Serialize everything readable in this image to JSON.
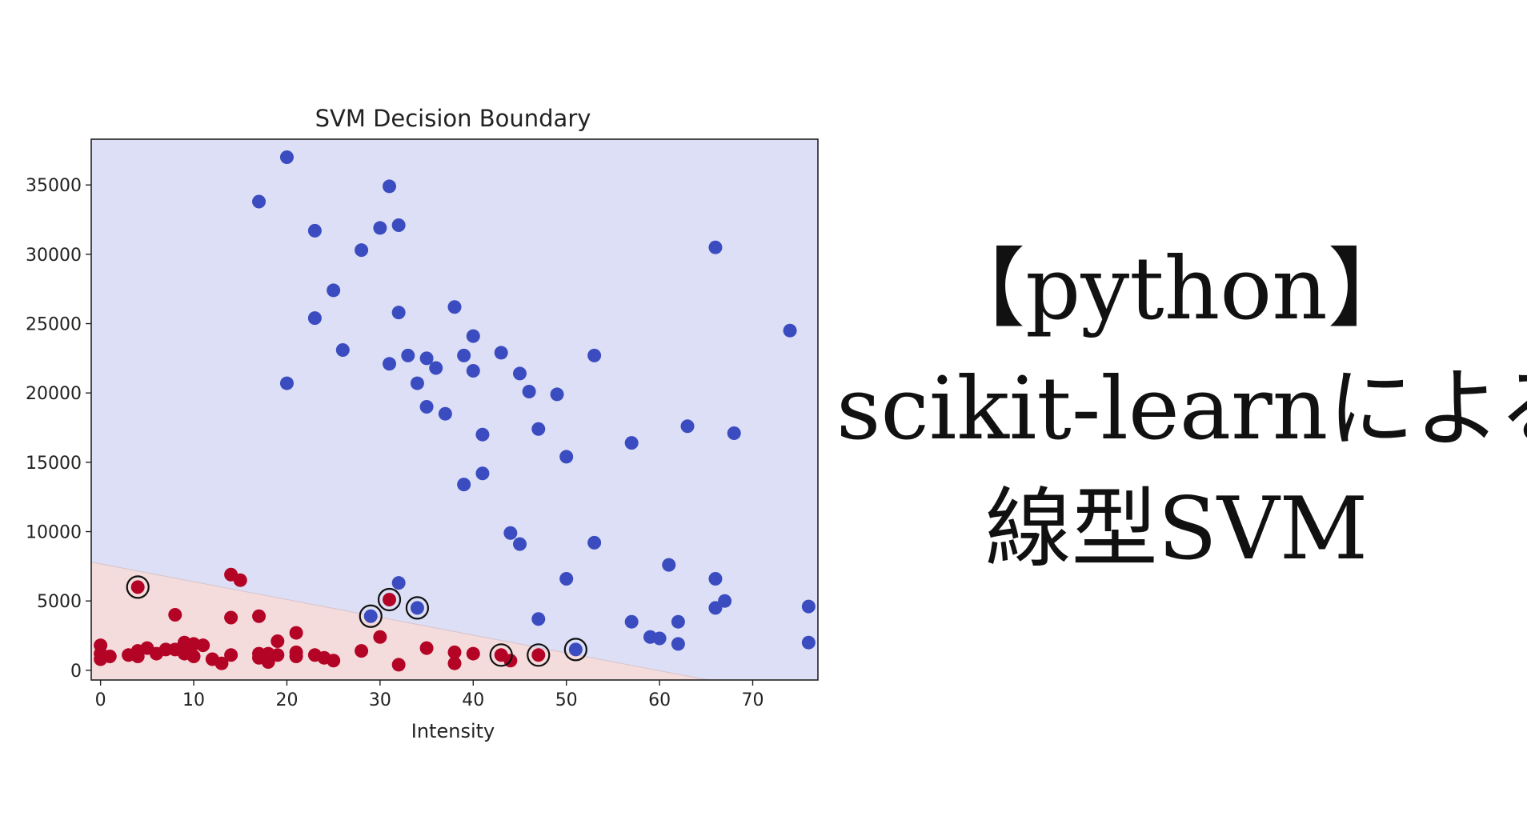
{
  "chart_data": {
    "type": "scatter",
    "title": "SVM Decision Boundary",
    "xlabel": "Intensity",
    "ylabel": "",
    "xlim": [
      -1,
      77
    ],
    "ylim": [
      -700,
      38300
    ],
    "xticks": [
      0,
      10,
      20,
      30,
      40,
      50,
      60,
      70
    ],
    "yticks": [
      0,
      5000,
      10000,
      15000,
      20000,
      25000,
      30000,
      35000
    ],
    "grid": false,
    "decision_boundary": {
      "points": [
        [
          -1,
          7800
        ],
        [
          65.2,
          -700
        ]
      ],
      "region_above_color": "#dcdff5",
      "region_below_color": "#f5dcdc"
    },
    "series": [
      {
        "color": "#3b4cc0",
        "points": [
          [
            20,
            37000
          ],
          [
            31,
            34900
          ],
          [
            17,
            33800
          ],
          [
            23,
            31700
          ],
          [
            30,
            31900
          ],
          [
            32,
            32100
          ],
          [
            28,
            30300
          ],
          [
            66,
            30500
          ],
          [
            25,
            27400
          ],
          [
            23,
            25400
          ],
          [
            32,
            25800
          ],
          [
            38,
            26200
          ],
          [
            74,
            24500
          ],
          [
            40,
            24100
          ],
          [
            26,
            23100
          ],
          [
            33,
            22700
          ],
          [
            35,
            22500
          ],
          [
            31,
            22100
          ],
          [
            36,
            21800
          ],
          [
            39,
            22700
          ],
          [
            43,
            22900
          ],
          [
            53,
            22700
          ],
          [
            40,
            21600
          ],
          [
            45,
            21400
          ],
          [
            20,
            20700
          ],
          [
            34,
            20700
          ],
          [
            46,
            20100
          ],
          [
            49,
            19900
          ],
          [
            35,
            19000
          ],
          [
            37,
            18500
          ],
          [
            41,
            17000
          ],
          [
            47,
            17400
          ],
          [
            63,
            17600
          ],
          [
            68,
            17100
          ],
          [
            57,
            16400
          ],
          [
            50,
            15400
          ],
          [
            41,
            14200
          ],
          [
            39,
            13400
          ],
          [
            44,
            9900
          ],
          [
            45,
            9100
          ],
          [
            53,
            9200
          ],
          [
            61,
            7600
          ],
          [
            32,
            6300
          ],
          [
            50,
            6600
          ],
          [
            66,
            6600
          ],
          [
            67,
            5000
          ],
          [
            66,
            4500
          ],
          [
            76,
            4600
          ],
          [
            47,
            3700
          ],
          [
            57,
            3500
          ],
          [
            62,
            3500
          ],
          [
            59,
            2400
          ],
          [
            60,
            2300
          ],
          [
            62,
            1900
          ],
          [
            76,
            2000
          ]
        ]
      },
      {
        "color": "#b40426",
        "points": [
          [
            0,
            1800
          ],
          [
            0,
            1200
          ],
          [
            0,
            800
          ],
          [
            1,
            1000
          ],
          [
            3,
            1100
          ],
          [
            4,
            1400
          ],
          [
            4,
            1000
          ],
          [
            5,
            1600
          ],
          [
            6,
            1200
          ],
          [
            7,
            1500
          ],
          [
            8,
            1500
          ],
          [
            8,
            4000
          ],
          [
            9,
            2000
          ],
          [
            9,
            1600
          ],
          [
            9,
            1200
          ],
          [
            10,
            1900
          ],
          [
            10,
            1000
          ],
          [
            11,
            1800
          ],
          [
            12,
            800
          ],
          [
            13,
            500
          ],
          [
            14,
            1100
          ],
          [
            14,
            3800
          ],
          [
            14,
            6900
          ],
          [
            15,
            6500
          ],
          [
            17,
            3900
          ],
          [
            17,
            1200
          ],
          [
            17,
            900
          ],
          [
            18,
            600
          ],
          [
            18,
            1200
          ],
          [
            19,
            2100
          ],
          [
            19,
            1100
          ],
          [
            21,
            2700
          ],
          [
            21,
            1300
          ],
          [
            21,
            1000
          ],
          [
            23,
            1100
          ],
          [
            24,
            900
          ],
          [
            25,
            700
          ],
          [
            28,
            1400
          ],
          [
            30,
            2400
          ],
          [
            32,
            400
          ],
          [
            35,
            1600
          ],
          [
            38,
            1300
          ],
          [
            38,
            500
          ],
          [
            40,
            1200
          ],
          [
            44,
            700
          ]
        ]
      }
    ],
    "support_vectors": [
      {
        "x": 4,
        "y": 6000,
        "class": "red"
      },
      {
        "x": 31,
        "y": 5100,
        "class": "red"
      },
      {
        "x": 43,
        "y": 1100,
        "class": "red"
      },
      {
        "x": 47,
        "y": 1100,
        "class": "red"
      },
      {
        "x": 29,
        "y": 3900,
        "class": "blue"
      },
      {
        "x": 34,
        "y": 4500,
        "class": "blue"
      },
      {
        "x": 51,
        "y": 1500,
        "class": "blue"
      }
    ]
  },
  "heading": {
    "line1": "【python】",
    "line2": "scikit-learnによる",
    "line3": "線型SVM"
  }
}
